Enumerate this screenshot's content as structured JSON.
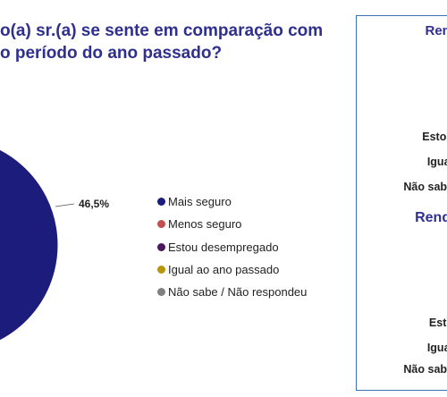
{
  "title": {
    "line1": "o(a) sr.(a) se sente em comparação com",
    "line2": "o período do ano passado?"
  },
  "chart_data": {
    "type": "pie",
    "title": "o(a) sr.(a) se sente em comparação com o período do ano passado?",
    "slices": [
      {
        "label": "Mais seguro",
        "value": 46.5,
        "data_label": "46,5%",
        "color": "#1c1c7c"
      },
      {
        "label": "Menos seguro",
        "value": null,
        "color": "#c0504d"
      },
      {
        "label": "Estou desempregado",
        "value": null,
        "color": "#4b1a5e"
      },
      {
        "label": "Igual ao ano passado",
        "value": null,
        "color": "#b8960c"
      },
      {
        "label": "Não sabe / Não respondeu",
        "value": null,
        "color": "#7f7f7f"
      }
    ],
    "legend_position": "right"
  },
  "side_panel": {
    "heading_top": "Rend",
    "labels_top": [
      "Estou",
      "Igual",
      "Não sabe"
    ],
    "heading_bottom": "Renda",
    "labels_bottom": [
      "Esto",
      "Igual",
      "Não sabe"
    ]
  }
}
